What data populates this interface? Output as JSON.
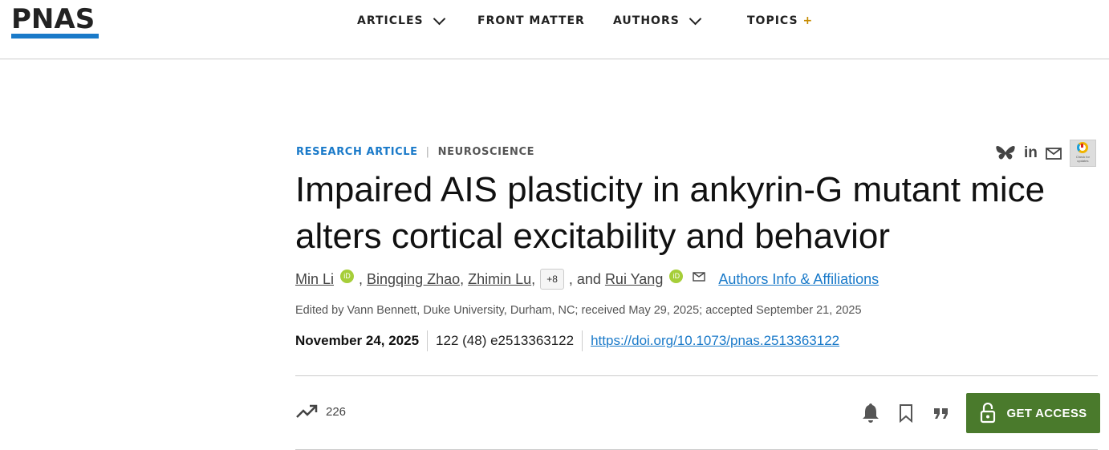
{
  "header": {
    "logo": "PNAS",
    "nav": [
      {
        "label": "ARTICLES"
      },
      {
        "label": "FRONT MATTER"
      },
      {
        "label": "AUTHORS"
      },
      {
        "label": "TOPICS",
        "suffix": "+"
      }
    ]
  },
  "article": {
    "type": "RESEARCH ARTICLE",
    "subject": "NEUROSCIENCE",
    "title": "Impaired AIS plasticity in ankyrin-G mutant mice alters cortical excitability and behavior",
    "authors": [
      "Min Li",
      "Bingqing Zhao",
      "Zhimin Lu",
      "Rui Yang"
    ],
    "more_authors": "+8",
    "and": ", and",
    "affiliations_link": "Authors Info & Affiliations",
    "orcid_label": "iD",
    "edited": "Edited by Vann Bennett, Duke University, Durham, NC; received May 29, 2025; accepted September 21, 2025",
    "date": "November 24, 2025",
    "citation": "122 (48) e2513363122",
    "doi": "https://doi.org/10.1073/pnas.2513363122",
    "metric_count": "226",
    "get_access": "GET ACCESS",
    "check_updates": "Check for updates"
  },
  "colors": {
    "accent": "#1a7ac9",
    "access_button": "#4a7a2c",
    "orcid": "#a6ce39",
    "topics_plus": "#c68b00"
  }
}
